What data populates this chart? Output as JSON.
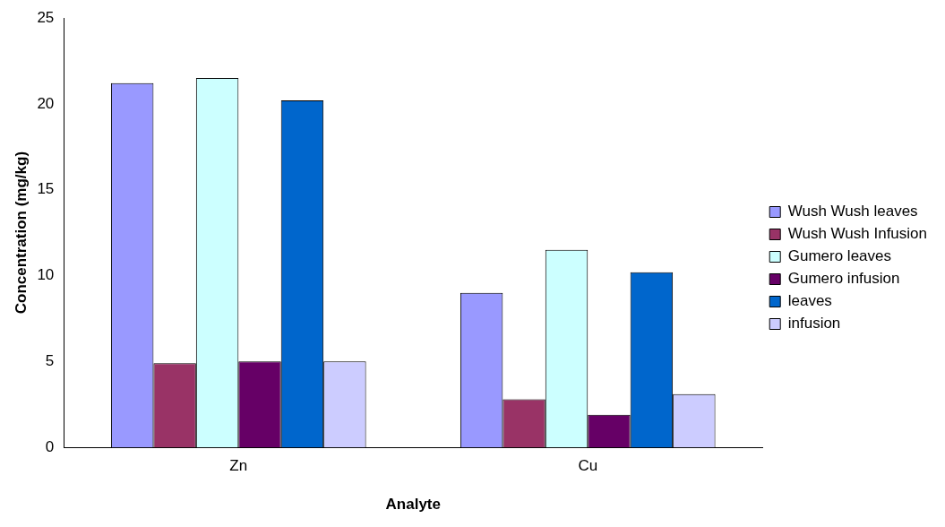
{
  "chart_data": {
    "type": "bar",
    "xlabel": "Analyte",
    "ylabel": "Concentration (mg/kg)",
    "categories": [
      "Zn",
      "Cu"
    ],
    "series": [
      {
        "name": "Wush Wush leaves",
        "color": "#9999ff",
        "values": [
          21.2,
          9.0
        ]
      },
      {
        "name": "Wush Wush Infusion",
        "color": "#993366",
        "values": [
          4.9,
          2.8
        ]
      },
      {
        "name": "Gumero leaves",
        "color": "#ccffff",
        "values": [
          21.5,
          11.5
        ]
      },
      {
        "name": "Gumero infusion",
        "color": "#660066",
        "values": [
          5.0,
          1.9
        ]
      },
      {
        "name": "leaves",
        "color": "#0066cc",
        "values": [
          20.2,
          10.2
        ]
      },
      {
        "name": "infusion",
        "color": "#ccccff",
        "values": [
          5.0,
          3.1
        ]
      }
    ],
    "ylim": [
      0,
      25
    ],
    "yticks": [
      0,
      5,
      10,
      15,
      20,
      25
    ],
    "grid": false,
    "legend": "right"
  }
}
